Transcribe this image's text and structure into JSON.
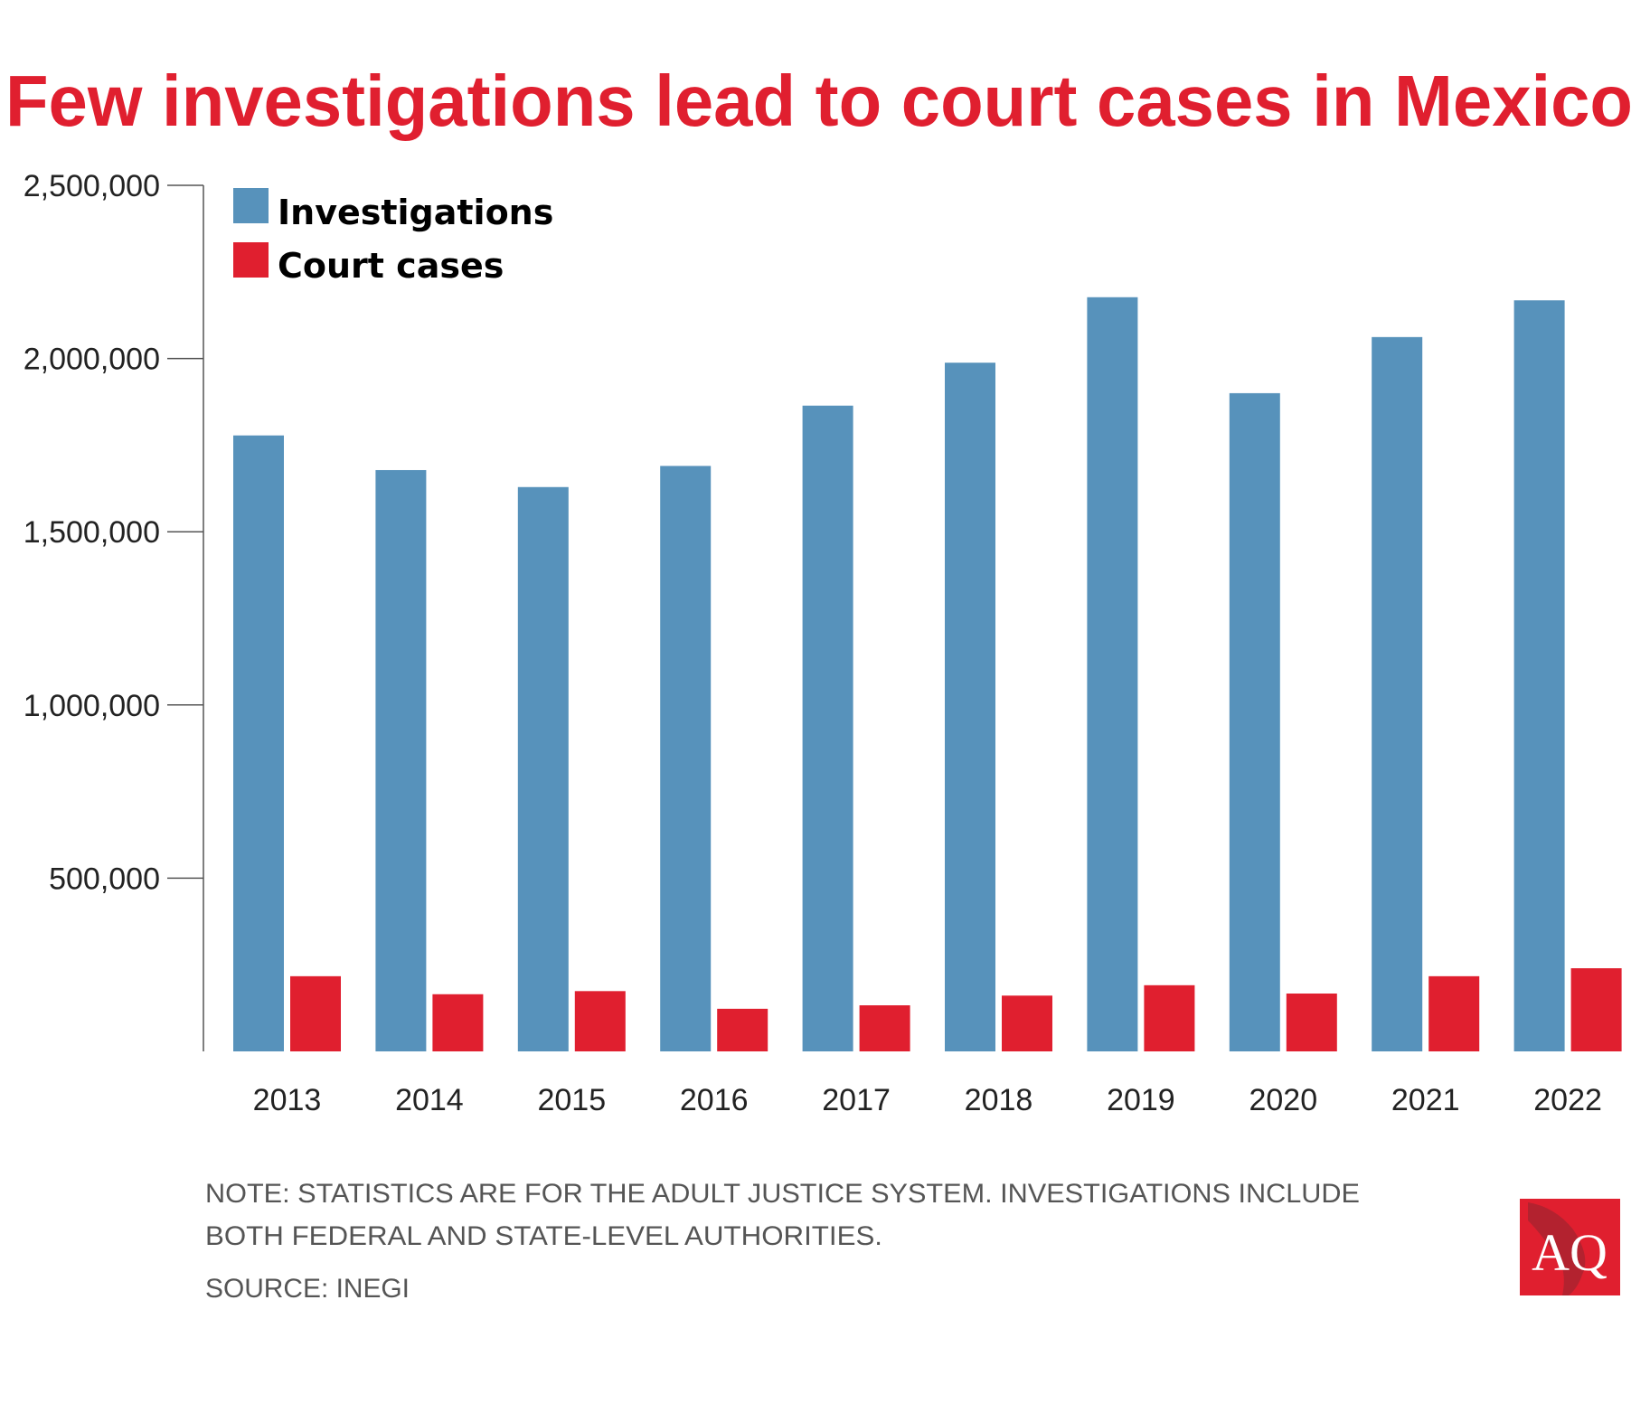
{
  "colors": {
    "investigations": "#5792bb",
    "court_cases": "#e01f2f",
    "title": "#e01f2f",
    "logo_bg": "#e01f2f"
  },
  "chart_data": {
    "type": "bar",
    "title": "Few investigations lead to court cases in Mexico",
    "xlabel": "",
    "ylabel": "",
    "ylim": [
      0,
      2500000
    ],
    "yticks": [
      500000,
      1000000,
      1500000,
      2000000,
      2500000
    ],
    "ytick_labels": [
      "500,000",
      "1,000,000",
      "1,500,000",
      "2,000,000",
      "2,500,000"
    ],
    "categories": [
      "2013",
      "2014",
      "2015",
      "2016",
      "2017",
      "2018",
      "2019",
      "2020",
      "2021",
      "2022"
    ],
    "legend_position": "top-left",
    "grid": false,
    "series": [
      {
        "name": "Investigations",
        "values": [
          1778000,
          1678000,
          1629000,
          1690000,
          1864000,
          1988000,
          2177000,
          1900000,
          2062000,
          2168000
        ]
      },
      {
        "name": "Court cases",
        "values": [
          217000,
          165000,
          174000,
          123000,
          133000,
          161000,
          191000,
          167000,
          217000,
          240000
        ]
      }
    ]
  },
  "notes": {
    "line1": "NOTE: STATISTICS ARE FOR THE ADULT JUSTICE SYSTEM. INVESTIGATIONS INCLUDE",
    "line2": "BOTH FEDERAL AND STATE-LEVEL AUTHORITIES.",
    "source": "SOURCE: INEGI"
  },
  "logo": {
    "text": "AQ"
  }
}
